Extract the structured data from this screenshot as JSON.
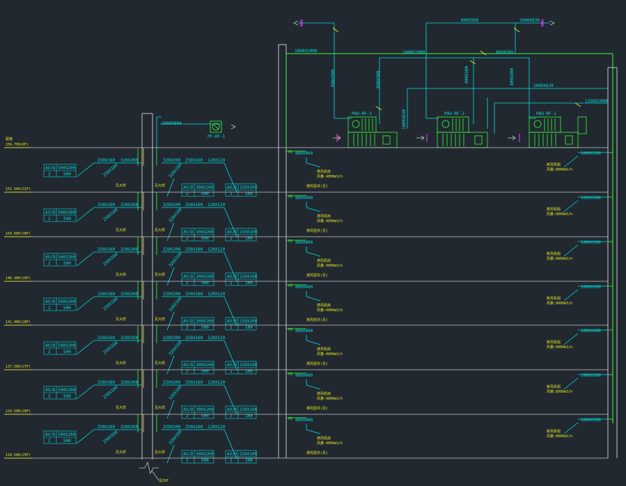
{
  "colors": {
    "background": "#212830",
    "floor_line": "#c8c8c8",
    "duct": "#39ff39",
    "text": "#00e5e5",
    "accent": "#e8e820",
    "marker": "#ff3cff"
  },
  "rooftop": {
    "top_duct_size": "800X500",
    "top_right_size": "1000X630",
    "header_1": "1000X1000",
    "header_2": "1000X1000",
    "header_3": "800X500",
    "riser_1": "800X500",
    "riser_2": "800X500",
    "riser_3": "800X500",
    "riser_4": "800X500",
    "riser_5": "1000X630",
    "branch_right": "1000X630",
    "branch_far": "1250X1000",
    "unit_1": "PAU-RF-3",
    "unit_2": "PAU-RF-2",
    "unit_3": "PAU-RF-1",
    "fan_label": "PF-RF-1",
    "fan_duct": "1000X800",
    "riser_left": "800X500"
  },
  "floors": [
    {
      "elevation": "156.700(RF)",
      "header_tag": "屋面",
      "rb": "1000X500"
    },
    {
      "elevation": "155.500(31F)",
      "rb": "1000X500"
    },
    {
      "elevation": "150.600(30F)",
      "rb": "1000X500"
    },
    {
      "elevation": "146.300(29F)",
      "rb": "1000X500"
    },
    {
      "elevation": "141.400(28F)",
      "rb": "1000X400"
    },
    {
      "elevation": "137.500(27F)",
      "rb": "1000X500"
    },
    {
      "elevation": "133.500(26F)",
      "rb": "1000X500"
    },
    {
      "elevation": "129.500(25F)",
      "rb": "1000X500"
    }
  ],
  "bottom_tag": "见25F",
  "branch": {
    "duct_a": "250X160",
    "duct_b": "320X200",
    "duct_c": "320X200",
    "duct_d": "250X160",
    "duct_e": "120X120",
    "riser_size": "800X400",
    "diag_left": "250X160",
    "diag_mid": "320X160",
    "note_small": "见大样",
    "note_right": "排风机房",
    "note_right2": "风量:4000m3/h",
    "note_bottom": "排风竖井(见)",
    "note_far": "新风机组",
    "note_far2": "风量:8000m3/h",
    "box1": {
      "h1": "AV/D",
      "h2": "500X200",
      "v1": "2",
      "v2": "500"
    },
    "box2": {
      "h1": "AV/D",
      "h2": "300X200",
      "v1": "2",
      "v2": "500"
    },
    "box3": {
      "h1": "AV/D",
      "h2": "150X100",
      "v1": "1",
      "v2": "100"
    }
  }
}
